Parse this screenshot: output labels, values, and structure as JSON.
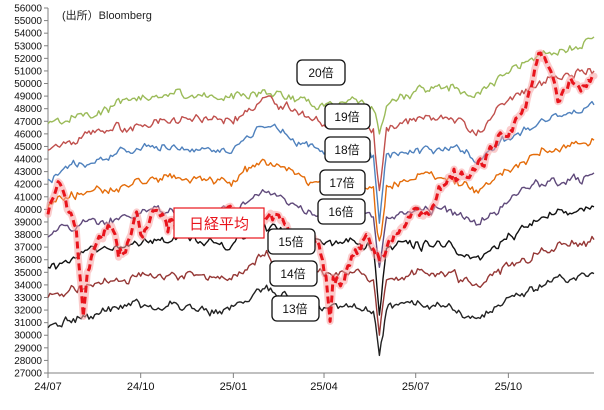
{
  "chart_data": {
    "type": "line",
    "source": "(出所）Bloomberg",
    "y_ticks": [
      27000,
      28000,
      29000,
      30000,
      31000,
      32000,
      33000,
      34000,
      35000,
      36000,
      37000,
      38000,
      39000,
      40000,
      41000,
      42000,
      43000,
      44000,
      45000,
      46000,
      47000,
      48000,
      49000,
      50000,
      51000,
      52000,
      53000,
      54000,
      55000,
      56000
    ],
    "ylim": [
      27000,
      56000
    ],
    "x_tick_labels": [
      "24/07",
      "24/10",
      "25/01",
      "25/04",
      "25/07",
      "25/10"
    ],
    "x_tick_dates": [
      "2024-07-01",
      "2024-10-01",
      "2025-01-01",
      "2025-04-01",
      "2025-07-01",
      "2025-10-01"
    ],
    "xlim": [
      "2024-07-01",
      "2025-12-25"
    ],
    "grid": false,
    "bands": [
      {
        "label": "20倍",
        "color": "#9bbb59",
        "values": [
          [
            "2024-07-01",
            46800
          ],
          [
            "2024-08-01",
            47600
          ],
          [
            "2024-09-01",
            48200
          ],
          [
            "2024-10-01",
            48700
          ],
          [
            "2024-11-01",
            49200
          ],
          [
            "2024-12-01",
            49000
          ],
          [
            "2025-01-01",
            48800
          ],
          [
            "2025-02-01",
            49500
          ],
          [
            "2025-03-01",
            49000
          ],
          [
            "2025-04-01",
            48200
          ],
          [
            "2025-05-01",
            48800
          ],
          [
            "2025-05-20",
            47900
          ],
          [
            "2025-05-26",
            46000
          ],
          [
            "2025-06-02",
            48200
          ],
          [
            "2025-07-01",
            49400
          ],
          [
            "2025-08-01",
            49800
          ],
          [
            "2025-09-01",
            49300
          ],
          [
            "2025-10-01",
            50800
          ],
          [
            "2025-11-01",
            52300
          ],
          [
            "2025-12-01",
            53000
          ],
          [
            "2025-12-25",
            53700
          ]
        ]
      },
      {
        "label": "19倍",
        "color": "#c0504d",
        "values": [
          [
            "2024-07-01",
            44700
          ],
          [
            "2024-08-01",
            45700
          ],
          [
            "2024-09-01",
            46300
          ],
          [
            "2024-10-01",
            46700
          ],
          [
            "2024-11-01",
            47100
          ],
          [
            "2024-12-01",
            46900
          ],
          [
            "2025-01-01",
            46800
          ],
          [
            "2025-02-01",
            48900
          ],
          [
            "2025-03-01",
            47800
          ],
          [
            "2025-04-01",
            46700
          ],
          [
            "2025-05-01",
            47000
          ],
          [
            "2025-05-20",
            46400
          ],
          [
            "2025-05-26",
            41500
          ],
          [
            "2025-06-02",
            46500
          ],
          [
            "2025-07-01",
            47000
          ],
          [
            "2025-08-01",
            47300
          ],
          [
            "2025-09-01",
            46300
          ],
          [
            "2025-10-01",
            48700
          ],
          [
            "2025-11-01",
            50200
          ],
          [
            "2025-12-01",
            50600
          ],
          [
            "2025-12-25",
            51000
          ]
        ]
      },
      {
        "label": "18倍",
        "color": "#4f81bd",
        "values": [
          [
            "2024-07-01",
            42400
          ],
          [
            "2024-08-01",
            43700
          ],
          [
            "2024-09-01",
            44300
          ],
          [
            "2024-10-01",
            44700
          ],
          [
            "2024-11-01",
            45000
          ],
          [
            "2024-12-01",
            44900
          ],
          [
            "2025-01-01",
            44800
          ],
          [
            "2025-02-01",
            46500
          ],
          [
            "2025-03-01",
            45600
          ],
          [
            "2025-04-01",
            44400
          ],
          [
            "2025-05-01",
            45000
          ],
          [
            "2025-05-20",
            44300
          ],
          [
            "2025-05-26",
            38900
          ],
          [
            "2025-06-02",
            44400
          ],
          [
            "2025-07-01",
            44800
          ],
          [
            "2025-08-01",
            44800
          ],
          [
            "2025-09-01",
            43900
          ],
          [
            "2025-10-01",
            45600
          ],
          [
            "2025-11-01",
            47000
          ],
          [
            "2025-12-01",
            47700
          ],
          [
            "2025-12-25",
            48300
          ]
        ]
      },
      {
        "label": "17倍",
        "color": "#e46c0a",
        "values": [
          [
            "2024-07-01",
            40200
          ],
          [
            "2024-08-01",
            41200
          ],
          [
            "2024-09-01",
            41700
          ],
          [
            "2024-10-01",
            42200
          ],
          [
            "2024-11-01",
            42500
          ],
          [
            "2024-12-01",
            42300
          ],
          [
            "2025-01-01",
            42300
          ],
          [
            "2025-02-01",
            43900
          ],
          [
            "2025-03-01",
            43100
          ],
          [
            "2025-04-01",
            42100
          ],
          [
            "2025-05-01",
            42500
          ],
          [
            "2025-05-20",
            41800
          ],
          [
            "2025-05-26",
            37500
          ],
          [
            "2025-06-02",
            41900
          ],
          [
            "2025-07-01",
            42400
          ],
          [
            "2025-08-01",
            42300
          ],
          [
            "2025-09-01",
            41300
          ],
          [
            "2025-10-01",
            43100
          ],
          [
            "2025-11-01",
            44300
          ],
          [
            "2025-12-01",
            45000
          ],
          [
            "2025-12-25",
            45500
          ]
        ]
      },
      {
        "label": "16倍",
        "color": "#604a7b",
        "values": [
          [
            "2024-07-01",
            37800
          ],
          [
            "2024-08-01",
            38700
          ],
          [
            "2024-09-01",
            39300
          ],
          [
            "2024-10-01",
            39700
          ],
          [
            "2024-11-01",
            40000
          ],
          [
            "2024-12-01",
            39800
          ],
          [
            "2025-01-01",
            39800
          ],
          [
            "2025-02-01",
            41400
          ],
          [
            "2025-03-01",
            40500
          ],
          [
            "2025-04-01",
            39700
          ],
          [
            "2025-05-01",
            40000
          ],
          [
            "2025-05-20",
            39400
          ],
          [
            "2025-05-26",
            35400
          ],
          [
            "2025-06-02",
            39400
          ],
          [
            "2025-07-01",
            39900
          ],
          [
            "2025-08-01",
            39800
          ],
          [
            "2025-09-01",
            38800
          ],
          [
            "2025-10-01",
            40600
          ],
          [
            "2025-11-01",
            41800
          ],
          [
            "2025-12-01",
            42300
          ],
          [
            "2025-12-25",
            42900
          ]
        ]
      },
      {
        "label": "15倍",
        "color": "#111111",
        "values": [
          [
            "2024-07-01",
            35400
          ],
          [
            "2024-08-01",
            36300
          ],
          [
            "2024-09-01",
            36800
          ],
          [
            "2024-10-01",
            37200
          ],
          [
            "2024-11-01",
            37500
          ],
          [
            "2024-12-01",
            37300
          ],
          [
            "2025-01-01",
            37300
          ],
          [
            "2025-02-01",
            38800
          ],
          [
            "2025-03-01",
            38000
          ],
          [
            "2025-04-01",
            37200
          ],
          [
            "2025-05-01",
            37500
          ],
          [
            "2025-05-20",
            36900
          ],
          [
            "2025-05-26",
            31600
          ],
          [
            "2025-06-02",
            36900
          ],
          [
            "2025-07-01",
            37400
          ],
          [
            "2025-08-01",
            37300
          ],
          [
            "2025-09-01",
            36300
          ],
          [
            "2025-10-01",
            38100
          ],
          [
            "2025-11-01",
            39200
          ],
          [
            "2025-12-01",
            39700
          ],
          [
            "2025-12-25",
            40200
          ]
        ]
      },
      {
        "label": "14倍",
        "color": "#953735",
        "values": [
          [
            "2024-07-01",
            33000
          ],
          [
            "2024-08-01",
            33900
          ],
          [
            "2024-09-01",
            34300
          ],
          [
            "2024-10-01",
            34700
          ],
          [
            "2024-11-01",
            35000
          ],
          [
            "2024-12-01",
            34800
          ],
          [
            "2025-01-01",
            34800
          ],
          [
            "2025-02-01",
            36300
          ],
          [
            "2025-03-01",
            35400
          ],
          [
            "2025-04-01",
            34700
          ],
          [
            "2025-05-01",
            35000
          ],
          [
            "2025-05-20",
            34400
          ],
          [
            "2025-05-26",
            30000
          ],
          [
            "2025-06-02",
            34400
          ],
          [
            "2025-07-01",
            34900
          ],
          [
            "2025-08-01",
            34800
          ],
          [
            "2025-09-01",
            33900
          ],
          [
            "2025-10-01",
            35500
          ],
          [
            "2025-11-01",
            36600
          ],
          [
            "2025-12-01",
            37100
          ],
          [
            "2025-12-25",
            37600
          ]
        ]
      },
      {
        "label": "13倍",
        "color": "#222222",
        "values": [
          [
            "2024-07-01",
            30600
          ],
          [
            "2024-08-01",
            31400
          ],
          [
            "2024-09-01",
            31900
          ],
          [
            "2024-10-01",
            32200
          ],
          [
            "2024-11-01",
            32500
          ],
          [
            "2024-12-01",
            32300
          ],
          [
            "2025-01-01",
            32300
          ],
          [
            "2025-02-01",
            33700
          ],
          [
            "2025-03-01",
            32900
          ],
          [
            "2025-04-01",
            32200
          ],
          [
            "2025-05-01",
            32500
          ],
          [
            "2025-05-20",
            31900
          ],
          [
            "2025-05-26",
            28400
          ],
          [
            "2025-06-02",
            32000
          ],
          [
            "2025-07-01",
            32400
          ],
          [
            "2025-08-01",
            32300
          ],
          [
            "2025-09-01",
            31400
          ],
          [
            "2025-10-01",
            33000
          ],
          [
            "2025-11-01",
            34000
          ],
          [
            "2025-12-01",
            34400
          ],
          [
            "2025-12-25",
            34900
          ]
        ]
      }
    ],
    "nikkei": {
      "label": "日経平均",
      "color": "#e8141c",
      "values": [
        [
          "2024-07-01",
          39600
        ],
        [
          "2024-07-11",
          42200
        ],
        [
          "2024-07-20",
          40000
        ],
        [
          "2024-07-29",
          38500
        ],
        [
          "2024-08-05",
          31500
        ],
        [
          "2024-08-09",
          35000
        ],
        [
          "2024-08-19",
          37500
        ],
        [
          "2024-08-26",
          38300
        ],
        [
          "2024-09-02",
          38700
        ],
        [
          "2024-09-09",
          36200
        ],
        [
          "2024-09-16",
          36600
        ],
        [
          "2024-09-27",
          39800
        ],
        [
          "2024-10-03",
          37800
        ],
        [
          "2024-10-15",
          39900
        ],
        [
          "2024-10-28",
          38200
        ],
        [
          "2024-11-08",
          39500
        ],
        [
          "2024-11-20",
          38400
        ],
        [
          "2024-12-10",
          39400
        ],
        [
          "2024-12-27",
          40200
        ],
        [
          "2025-01-08",
          39500
        ],
        [
          "2025-01-20",
          38900
        ],
        [
          "2025-02-03",
          39300
        ],
        [
          "2025-02-17",
          39100
        ],
        [
          "2025-03-03",
          37300
        ],
        [
          "2025-03-18",
          37700
        ],
        [
          "2025-03-27",
          37200
        ],
        [
          "2025-04-03",
          34700
        ],
        [
          "2025-04-07",
          31100
        ],
        [
          "2025-04-10",
          34600
        ],
        [
          "2025-04-21",
          34300
        ],
        [
          "2025-05-02",
          36800
        ],
        [
          "2025-05-13",
          38000
        ],
        [
          "2025-05-26",
          36000
        ],
        [
          "2025-06-06",
          37700
        ],
        [
          "2025-06-20",
          38600
        ],
        [
          "2025-07-01",
          40100
        ],
        [
          "2025-07-14",
          39600
        ],
        [
          "2025-07-24",
          41800
        ],
        [
          "2025-08-08",
          43200
        ],
        [
          "2025-08-25",
          42800
        ],
        [
          "2025-09-05",
          43500
        ],
        [
          "2025-09-19",
          45200
        ],
        [
          "2025-10-01",
          45800
        ],
        [
          "2025-10-16",
          48100
        ],
        [
          "2025-10-31",
          52400
        ],
        [
          "2025-11-12",
          51000
        ],
        [
          "2025-11-21",
          48600
        ],
        [
          "2025-12-02",
          50400
        ],
        [
          "2025-12-12",
          49400
        ],
        [
          "2025-12-25",
          50600
        ]
      ]
    }
  }
}
